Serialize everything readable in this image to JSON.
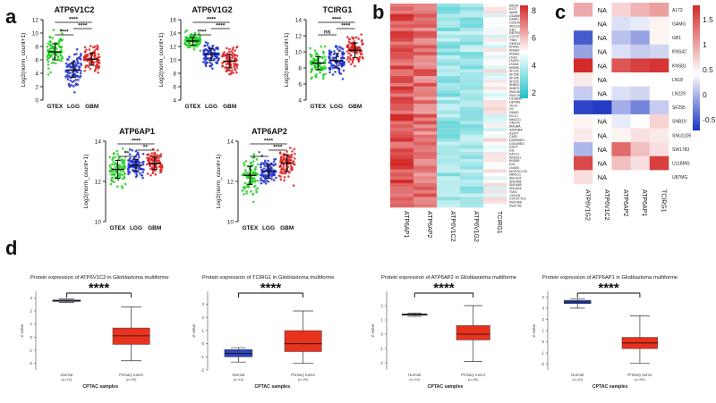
{
  "panels": {
    "a": "a",
    "b": "b",
    "c": "c",
    "d": "d"
  },
  "colors": {
    "gtex": "#22cc22",
    "lgg": "#2233cc",
    "gbm": "#dd2222",
    "normal": "#2c46b8",
    "tumor": "#e8321e",
    "heat_high": "#d42a2a",
    "heat_mid": "#ffffff",
    "heat_low": "#1fc2c8",
    "heat_neg": "#1832c0"
  },
  "chart_data": [
    {
      "id": "atp6v1c2",
      "type": "scatter",
      "title": "ATP6V1C2",
      "ylabel": "Log2(norm_count+1)",
      "categories": [
        "GTEX",
        "LGG",
        "GBM"
      ],
      "ylim": [
        0,
        12
      ],
      "yticks": [
        "0",
        "2",
        "4",
        "6",
        "8",
        "10",
        "12"
      ],
      "means": [
        7.2,
        4.5,
        6.1
      ],
      "sd": [
        1.2,
        1.1,
        0.9
      ],
      "brackets": [
        "****",
        "****",
        "****"
      ]
    },
    {
      "id": "atp6v1g2",
      "type": "scatter",
      "title": "ATP6V1G2",
      "ylabel": "Log2(norm_count+1)",
      "categories": [
        "GTEX",
        "LGG",
        "GBM"
      ],
      "ylim": [
        4,
        16
      ],
      "yticks": [
        "4",
        "6",
        "8",
        "10",
        "12",
        "14",
        "16"
      ],
      "means": [
        12.8,
        10.8,
        9.8
      ],
      "sd": [
        0.6,
        0.9,
        1.0
      ],
      "brackets": [
        "****",
        "****",
        "****"
      ]
    },
    {
      "id": "tcirg1",
      "type": "scatter",
      "title": "TCIRG1",
      "ylabel": "Log2(norm_count+1)",
      "categories": [
        "GTEX",
        "LGG",
        "GBM"
      ],
      "ylim": [
        4,
        14
      ],
      "yticks": [
        "4",
        "6",
        "8",
        "10",
        "12",
        "14"
      ],
      "means": [
        8.6,
        8.9,
        10.2
      ],
      "sd": [
        0.8,
        0.9,
        0.9
      ],
      "brackets": [
        "ns",
        "****",
        "****"
      ]
    },
    {
      "id": "atp6ap1",
      "type": "scatter",
      "title": "ATP6AP1",
      "ylabel": "Log2(norm_count+1)",
      "categories": [
        "GTEX",
        "LGG",
        "GBM"
      ],
      "ylim": [
        10,
        14
      ],
      "yticks": [
        "10",
        "12",
        "14"
      ],
      "means": [
        12.6,
        12.8,
        12.9
      ],
      "sd": [
        0.45,
        0.3,
        0.3
      ],
      "brackets": [
        "**",
        "**",
        "****"
      ]
    },
    {
      "id": "atp6ap2",
      "type": "scatter",
      "title": "ATP6AP2",
      "ylabel": "Log2(norm_count+1)",
      "categories": [
        "GTEX",
        "LGG",
        "GBM"
      ],
      "ylim": [
        10,
        14
      ],
      "yticks": [
        "10",
        "12",
        "14"
      ],
      "means": [
        12.3,
        12.5,
        12.9
      ],
      "sd": [
        0.45,
        0.35,
        0.4
      ],
      "brackets": [
        "*",
        "****",
        "****"
      ]
    },
    {
      "id": "heatmap_b",
      "type": "heatmap",
      "columns": [
        "ATP6AP1",
        "ATP6AP2",
        "ATP6V1C2",
        "ATP6V1G2",
        "TCIRG1"
      ],
      "rows": [
        "A5028",
        "A172",
        "AM38",
        "U118MG",
        "GAMG",
        "U251MG",
        "SNU1105",
        "GB1",
        "DBTRG05MG",
        "CCFSTTG1",
        "T98G",
        "GMS10",
        "KNS42",
        "KNS60",
        "KNS81",
        "LN18",
        "LN229",
        "LN340",
        "M059K",
        "SF126",
        "SF268",
        "SF295",
        "SF539",
        "SNB19",
        "SNB75",
        "SW1088",
        "SW1783",
        "U138MG",
        "U87MG",
        "YKG1",
        "H4",
        "DKMG",
        "KG1C",
        "NMCG1",
        "ONS76",
        "8MGBA",
        "42MGBA",
        "A1207",
        "CAS1",
        "D283MED",
        "D341MED",
        "DAOY",
        "GI1",
        "KALS1",
        "KINGS1",
        "KNS89",
        "KS1",
        "LN405",
        "MOGGCCM",
        "NMCG1",
        "SNU201",
        "SNU466",
        "SNU489",
        "SNU626",
        "TM31",
        "1321N1",
        "CCFSTTG1",
        "SW1088",
        "SW1783"
      ],
      "column_means": [
        0.9,
        0.82,
        0.28,
        0.3,
        0.5
      ],
      "scale_ticks": [
        "8",
        "6",
        "4",
        "2"
      ]
    },
    {
      "id": "heatmap_c",
      "type": "heatmap",
      "columns": [
        "ATP6V1G2",
        "ATP6V1C2",
        "ATP6AP2",
        "ATP6AP1",
        "TCIRG1"
      ],
      "rows": [
        "A172",
        "GAMG",
        "GB1",
        "KNS42",
        "KNS81",
        "LN18",
        "LN229",
        "SF295",
        "SNB19",
        "SNU1105",
        "SW1783",
        "U118MG",
        "U87MG"
      ],
      "na_label": "NA",
      "values": [
        [
          0.8,
          null,
          0.4,
          0.7,
          0.9
        ],
        [
          0.0,
          null,
          -0.3,
          -0.2,
          0.1
        ],
        [
          -1.6,
          null,
          -0.6,
          -0.9,
          0.1
        ],
        [
          -0.9,
          null,
          -0.3,
          -0.5,
          -0.4
        ],
        [
          2.0,
          null,
          1.6,
          1.8,
          1.9
        ],
        [
          0.2,
          null,
          null,
          null,
          null
        ],
        [
          -0.5,
          null,
          -0.3,
          -0.4,
          0.0
        ],
        [
          -1.8,
          -1.9,
          -0.8,
          -1.2,
          -0.5
        ],
        [
          0.1,
          null,
          -0.2,
          0.0,
          0.4
        ],
        [
          0.2,
          null,
          0.1,
          0.3,
          0.2
        ],
        [
          -0.7,
          null,
          1.4,
          0.6,
          0.3
        ],
        [
          1.7,
          null,
          0.6,
          0.3,
          1.8
        ],
        [
          0.3,
          null,
          null,
          null,
          null
        ]
      ],
      "scale_ticks": [
        "1.5",
        "1",
        "0.5",
        "0",
        "-0.5"
      ]
    },
    {
      "id": "cptac_atp6v1c2",
      "type": "box",
      "title": "Protein expression of ATP6V1C2 in Glioblastoma multiforme",
      "xlabel": "CPTAC samples",
      "ylabel": "Z-value",
      "categories": [
        "Normal",
        "Primary tumor"
      ],
      "counts": [
        "(n=10)",
        "(n=99)"
      ],
      "ylim": [
        -2.5,
        3.5
      ],
      "yticks": [
        "3",
        "2",
        "1",
        "0",
        "-1",
        "-2"
      ],
      "boxes": [
        [
          2.65,
          2.72,
          2.78,
          2.84,
          2.92
        ],
        [
          -1.8,
          -0.55,
          0.1,
          0.7,
          2.3
        ]
      ],
      "significance": "****"
    },
    {
      "id": "cptac_tcirg1",
      "type": "box",
      "title": "Protein expression of TCIRG1 in Glioblastoma multiforme",
      "xlabel": "CPTAC samples",
      "ylabel": "Z-value",
      "categories": [
        "Normal",
        "Primary tumor"
      ],
      "counts": [
        "(n=10)",
        "(n=99)"
      ],
      "ylim": [
        -2,
        4
      ],
      "yticks": [
        "3",
        "2",
        "1",
        "0",
        "-1",
        "-2"
      ],
      "boxes": [
        [
          -1.4,
          -1.0,
          -0.75,
          -0.45,
          -0.3
        ],
        [
          -1.5,
          -0.6,
          0.0,
          1.0,
          2.5
        ]
      ],
      "significance": "****"
    },
    {
      "id": "cptac_atp6ap2",
      "type": "box",
      "title": "Protein expression of ATP6AP2 in Glioblastoma multiforme",
      "xlabel": "CPTAC samples",
      "ylabel": "Z-value",
      "categories": [
        "Normal",
        "Primary tumor"
      ],
      "counts": [
        "(n=10)",
        "(n=99)"
      ],
      "ylim": [
        -2.5,
        3
      ],
      "yticks": [
        "2",
        "1",
        "0",
        "-1",
        "-2"
      ],
      "boxes": [
        [
          1.25,
          1.33,
          1.38,
          1.42,
          1.48
        ],
        [
          -1.9,
          -0.4,
          0.0,
          0.6,
          2.0
        ]
      ],
      "significance": "****"
    },
    {
      "id": "cptac_atp6ap1",
      "type": "box",
      "title": "Protein expression of ATP6AP1 in Glioblastoma multiforme",
      "xlabel": "CPTAC samples",
      "ylabel": "Z-value",
      "categories": [
        "Normal",
        "Primary tumor"
      ],
      "counts": [
        "(n=10)",
        "(n=99)"
      ],
      "ylim": [
        -2.5,
        4.5
      ],
      "yticks": [
        "4",
        "3",
        "2",
        "1",
        "0",
        "-1",
        "-2"
      ],
      "boxes": [
        [
          3.0,
          3.4,
          3.55,
          3.7,
          3.85
        ],
        [
          -1.9,
          -0.6,
          -0.1,
          0.4,
          2.3
        ]
      ],
      "significance": "****"
    }
  ]
}
